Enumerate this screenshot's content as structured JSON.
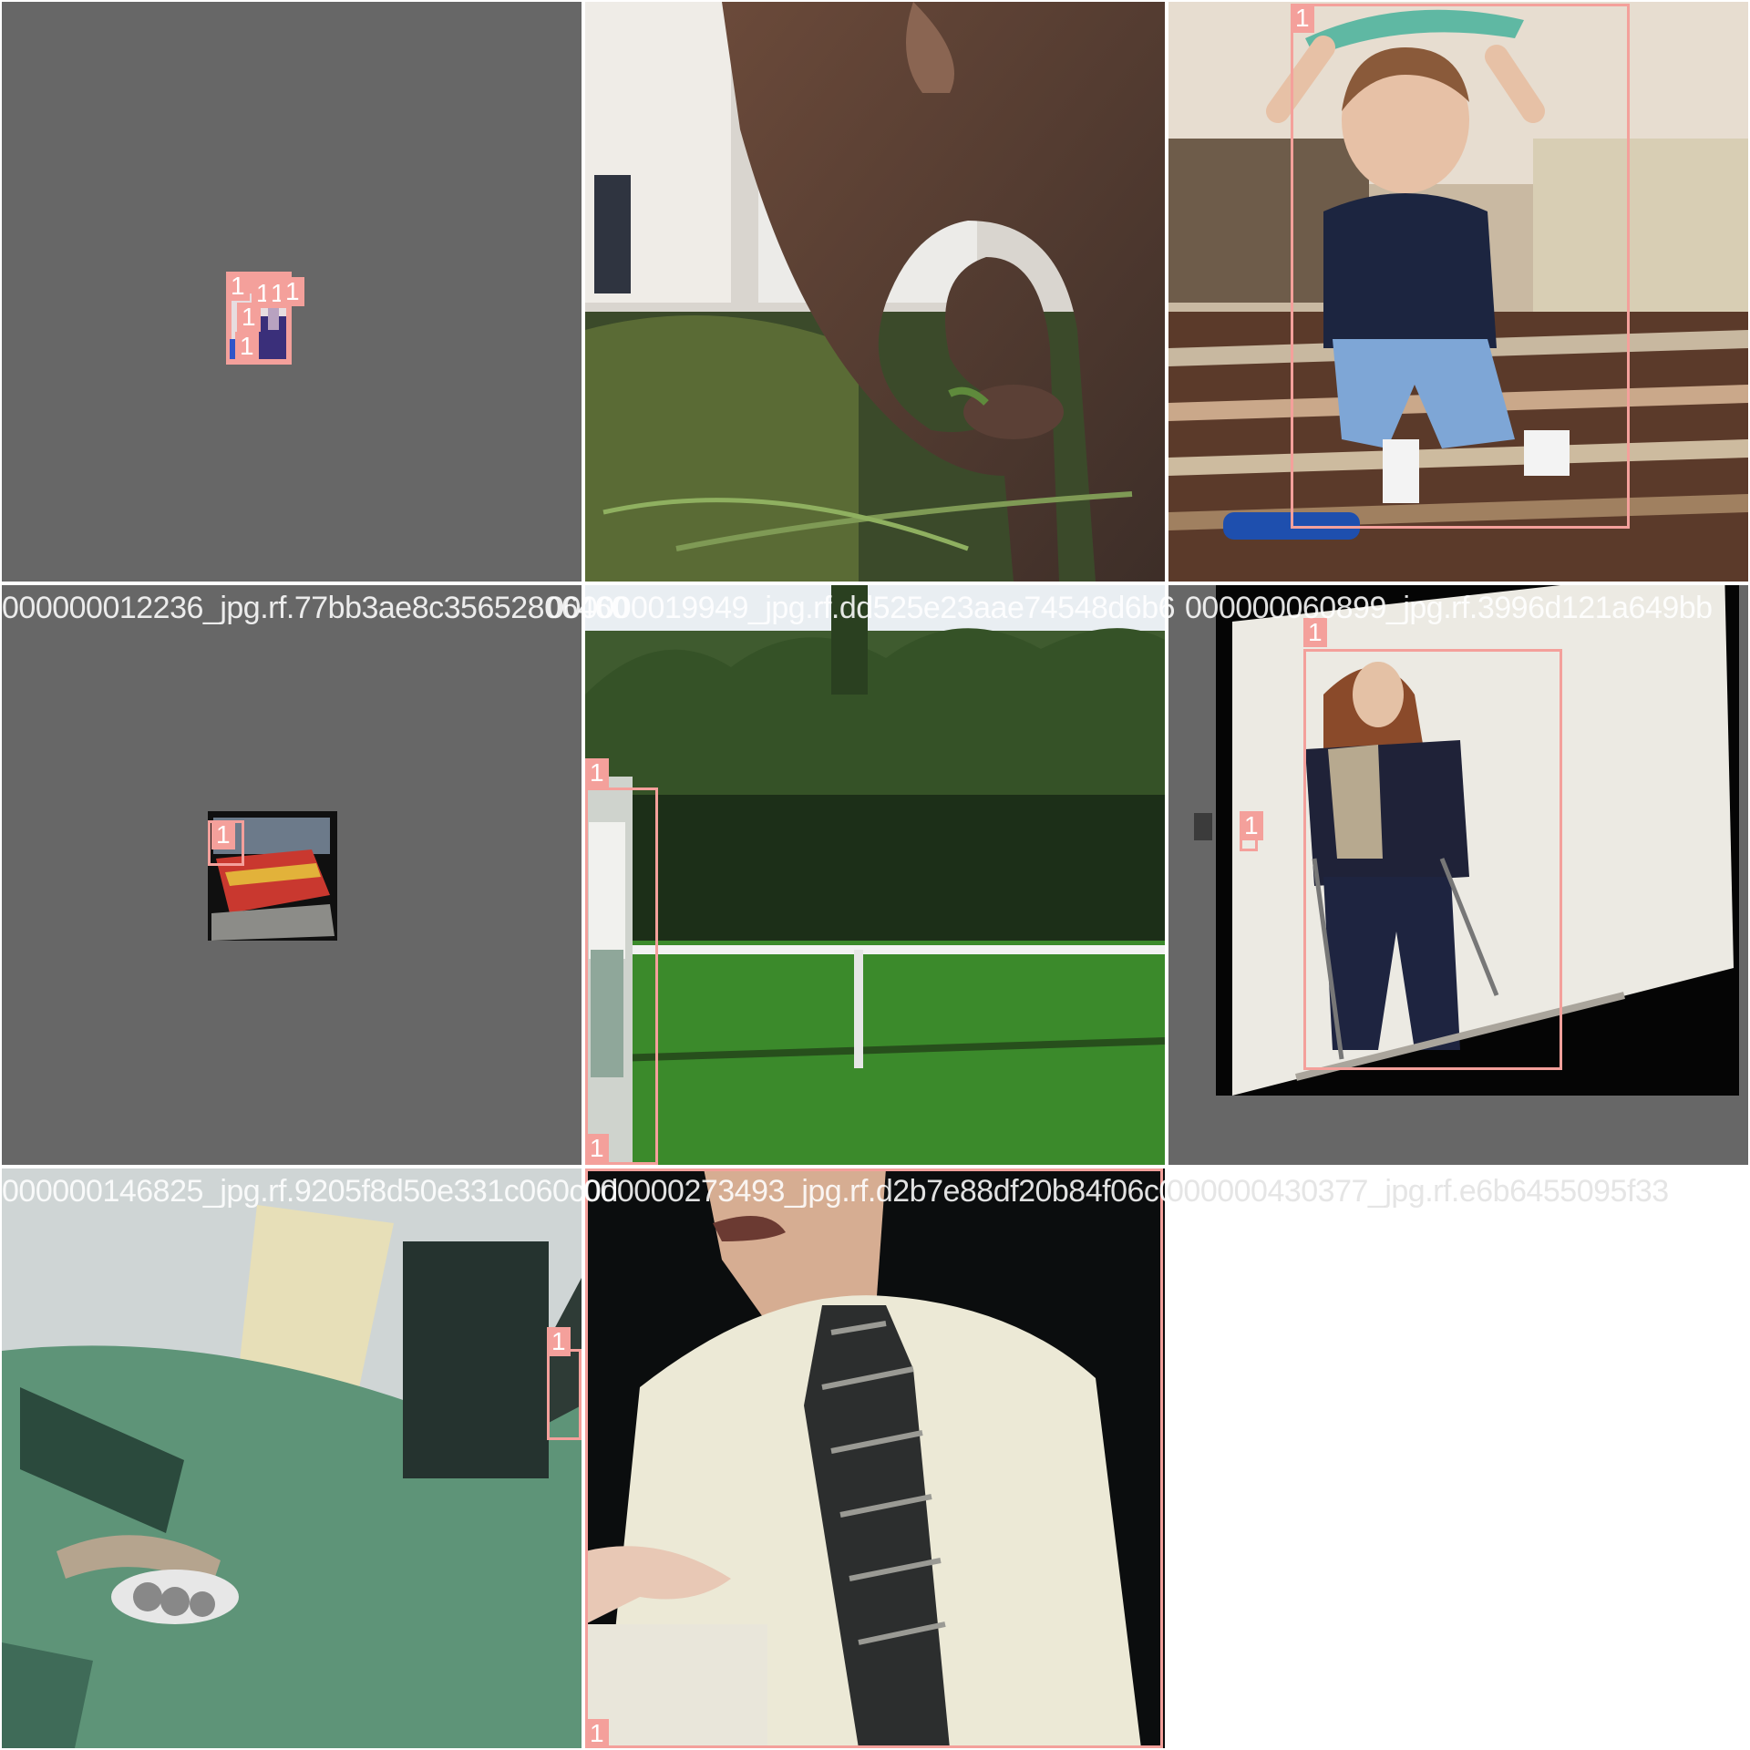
{
  "filenames": [
    "000000012236_jpg.rf.77bb3ae8c35652806460",
    "000000019949_jpg.rf.dd525e23aae74548d6b6",
    "000000060899_jpg.rf.3996d121a649bb",
    "000000146825_jpg.rf.9205f8d50e331c060c0d",
    "000000273493_jpg.rf.d2b7e88df20b84f06c03",
    "000000430377_jpg.rf.e6b6455095f33"
  ],
  "detection_label": "1",
  "colors": {
    "box": "#f4a09b",
    "letterbox_gray": "#676767",
    "background": "#ffffff"
  },
  "tiles": [
    {
      "scene": "gray letterbox with tiny scaled image of a person in blue",
      "labels": [
        "1",
        "1",
        "1",
        "1",
        "1",
        "1"
      ]
    },
    {
      "scene": "close-up of elephant trunk eating grass",
      "labels": []
    },
    {
      "scene": "toddler in navy shirt with toy on head in living room",
      "labels": [
        "1"
      ]
    },
    {
      "scene": "gray letterbox with small image of red train",
      "labels": [
        "1"
      ]
    },
    {
      "scene": "tennis court with player at left edge",
      "labels": [
        "1",
        "1"
      ]
    },
    {
      "scene": "rotated photo of girl on skis in snow",
      "labels": [
        "1",
        "1"
      ]
    },
    {
      "scene": "green bus front view",
      "labels": [
        "1"
      ]
    },
    {
      "scene": "man in cream shirt with striped tie",
      "labels": [
        "1"
      ]
    }
  ]
}
